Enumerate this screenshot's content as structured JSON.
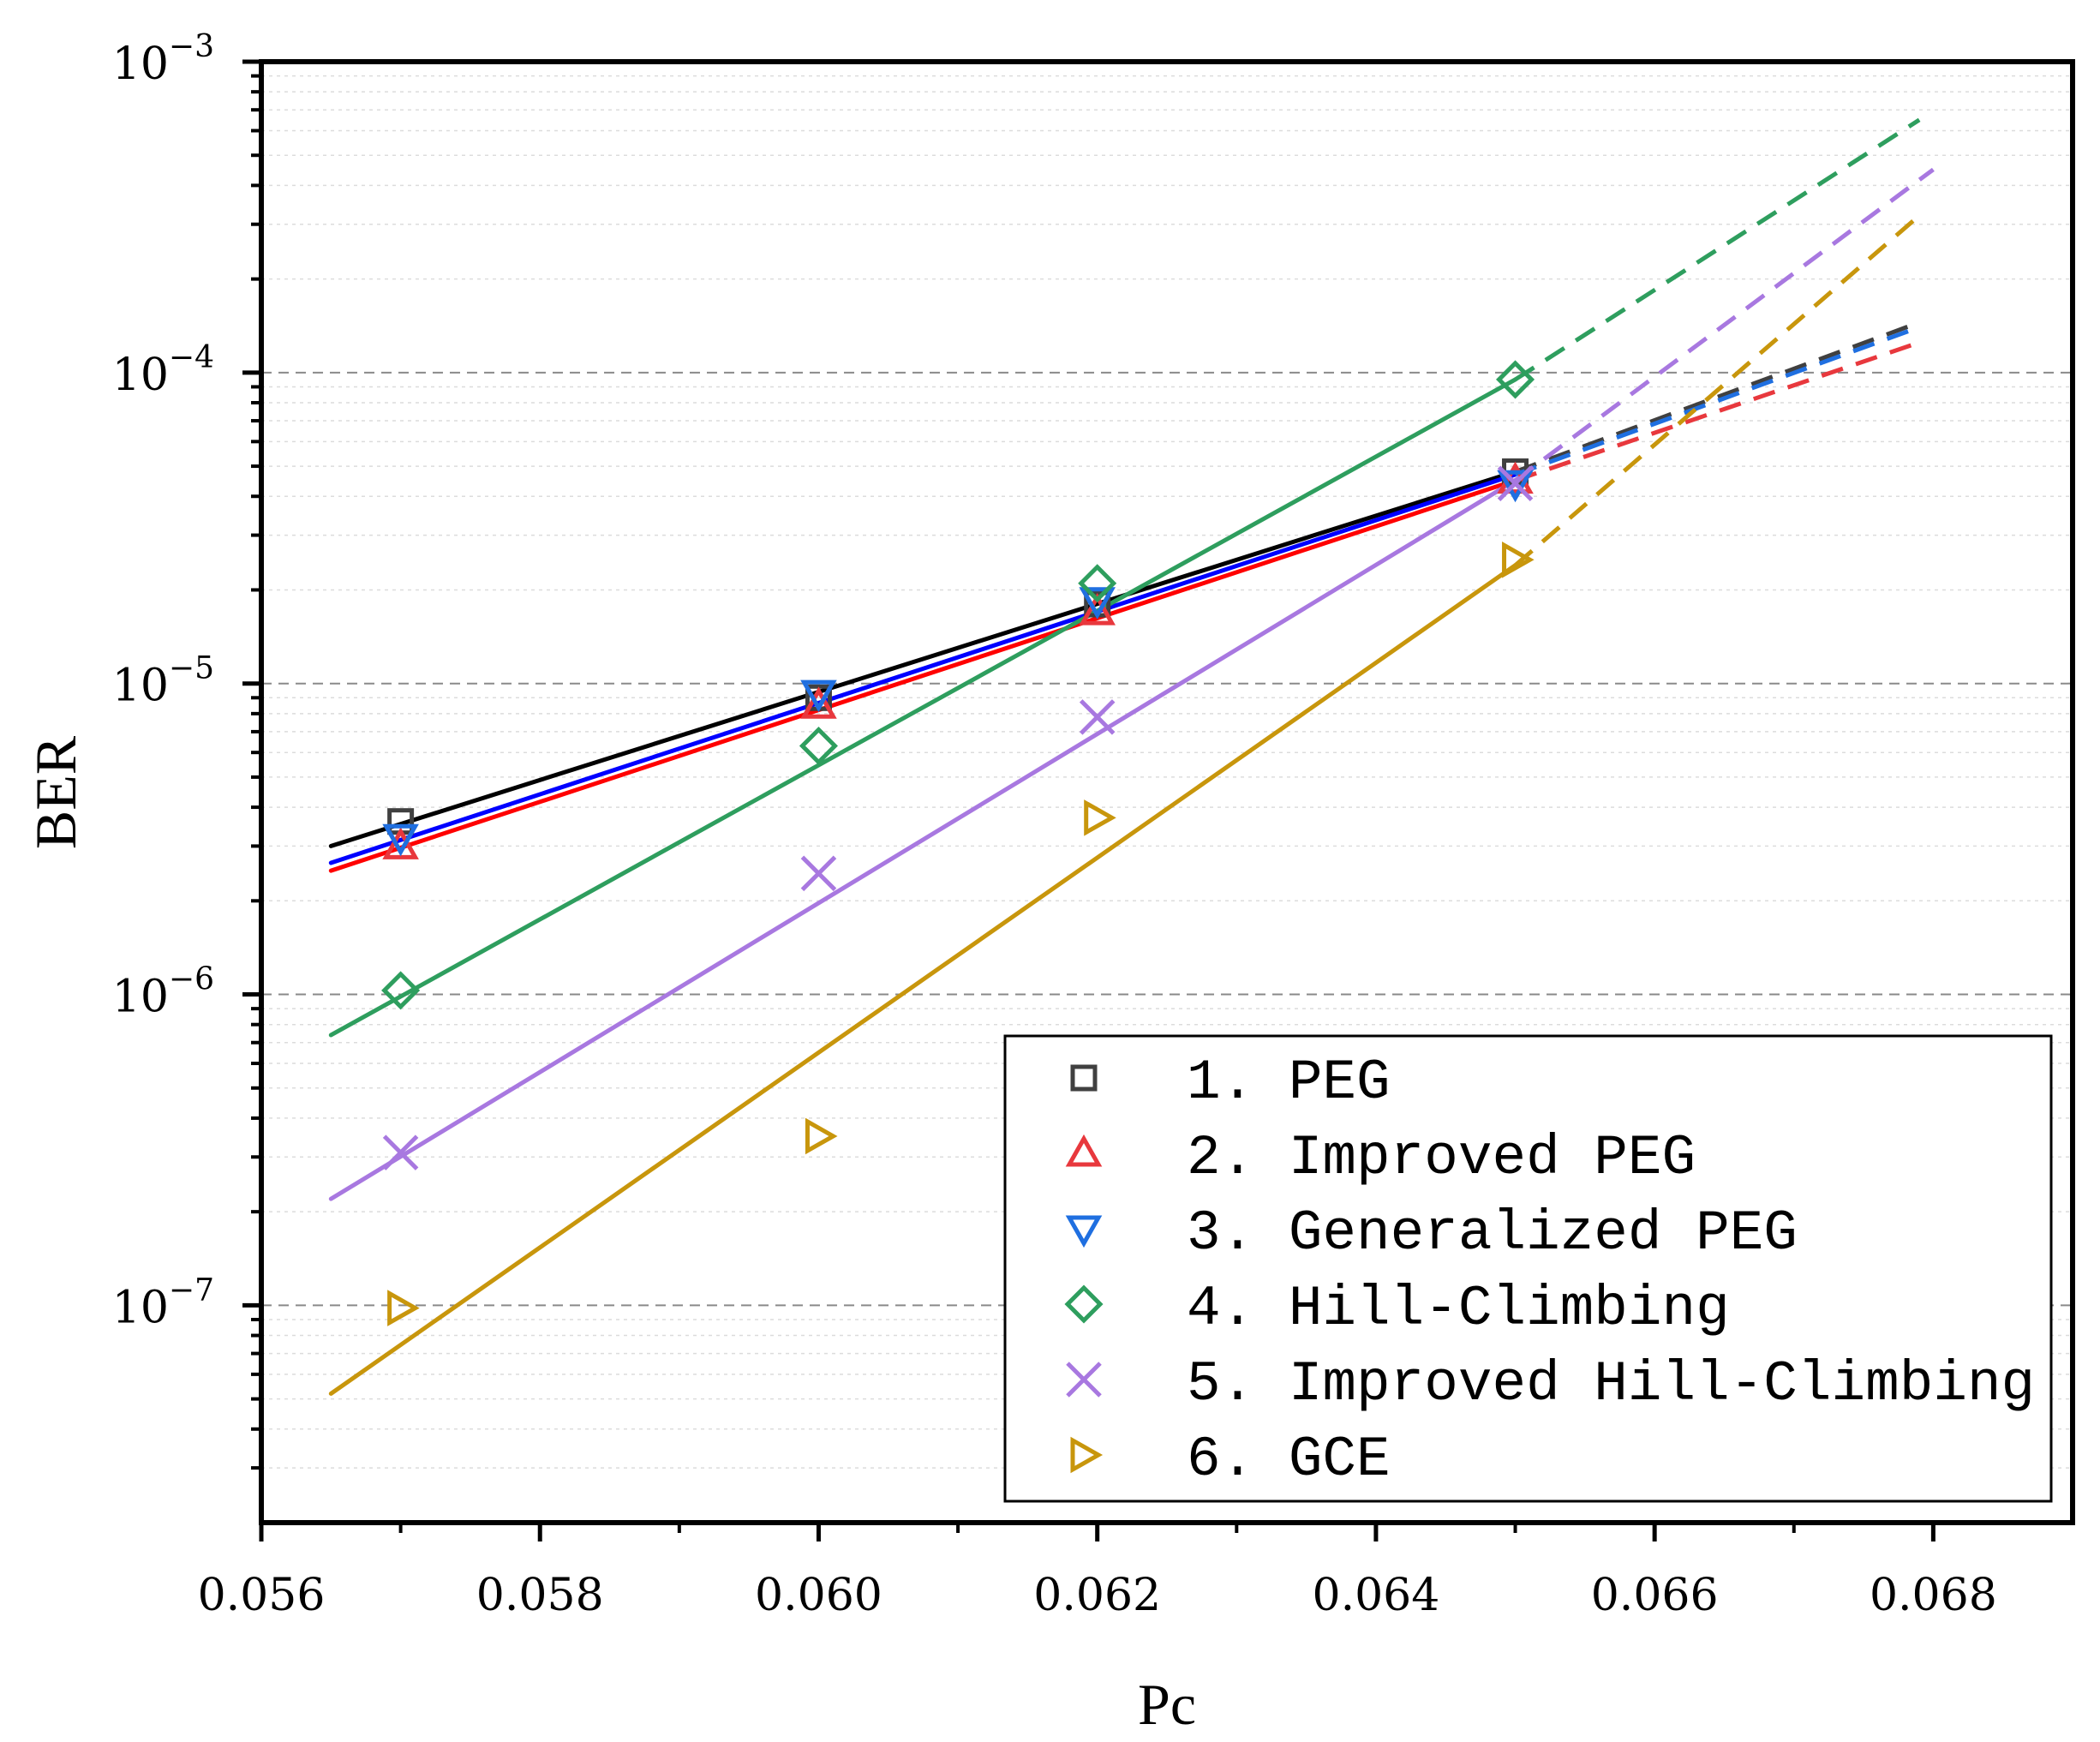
{
  "chart_data": {
    "type": "line",
    "xlabel": "Pc",
    "ylabel": "BER",
    "yscale": "log",
    "xlim": [
      0.056,
      0.069
    ],
    "ylim": [
      2e-08,
      0.001
    ],
    "x_ticks": [
      {
        "value": 0.056,
        "label": "0.056"
      },
      {
        "value": 0.058,
        "label": "0.058"
      },
      {
        "value": 0.06,
        "label": "0.060"
      },
      {
        "value": 0.062,
        "label": "0.062"
      },
      {
        "value": 0.064,
        "label": "0.064"
      },
      {
        "value": 0.066,
        "label": "0.066"
      },
      {
        "value": 0.068,
        "label": "0.068"
      }
    ],
    "y_ticks": [
      {
        "value": 1e-07,
        "base": "10",
        "exp": "−7"
      },
      {
        "value": 1e-06,
        "base": "10",
        "exp": "−6"
      },
      {
        "value": 1e-05,
        "base": "10",
        "exp": "−5"
      },
      {
        "value": 0.0001,
        "base": "10",
        "exp": "−4"
      },
      {
        "value": 0.001,
        "base": "10",
        "exp": "−3"
      }
    ],
    "grid": "horizontal dashed",
    "legend_position": "bottom-right",
    "series": [
      {
        "name": "1.  PEG",
        "marker": "square",
        "color": "#404040",
        "fit_color": "#000000",
        "points": [
          [
            0.057,
            3.6e-06
          ],
          [
            0.06,
            9e-06
          ],
          [
            0.062,
            1.8e-05
          ],
          [
            0.065,
            4.8e-05
          ]
        ],
        "fit": {
          "x": [
            0.0565,
            0.065
          ],
          "y": [
            3e-06,
            4.8e-05
          ]
        },
        "extrap": {
          "x": [
            0.065,
            0.0679
          ],
          "y": [
            4.8e-05,
            0.000145
          ]
        }
      },
      {
        "name": "2.  Improved PEG",
        "marker": "triangle-up",
        "color": "#e8383d",
        "fit_color": "#ff0000",
        "points": [
          [
            0.057,
            3e-06
          ],
          [
            0.06,
            8.5e-06
          ],
          [
            0.062,
            1.7e-05
          ],
          [
            0.065,
            4.5e-05
          ]
        ],
        "fit": {
          "x": [
            0.0565,
            0.065
          ],
          "y": [
            2.5e-06,
            4.5e-05
          ]
        },
        "extrap": {
          "x": [
            0.065,
            0.0679
          ],
          "y": [
            4.5e-05,
            0.000125
          ]
        }
      },
      {
        "name": "3.  Generalized PEG",
        "marker": "triangle-down",
        "color": "#1f6fe0",
        "fit_color": "#0000ff",
        "points": [
          [
            0.057,
            3.2e-06
          ],
          [
            0.06,
            9.3e-06
          ],
          [
            0.062,
            1.85e-05
          ],
          [
            0.065,
            4.4e-05
          ]
        ],
        "fit": {
          "x": [
            0.0565,
            0.065
          ],
          "y": [
            2.65e-06,
            4.7e-05
          ]
        },
        "extrap": {
          "x": [
            0.065,
            0.0679
          ],
          "y": [
            4.7e-05,
            0.00014
          ]
        }
      },
      {
        "name": "4.  Hill-Climbing",
        "marker": "diamond",
        "color": "#2e9e5e",
        "fit_color": "#2e9e5e",
        "points": [
          [
            0.057,
            1.03e-06
          ],
          [
            0.06,
            6.3e-06
          ],
          [
            0.062,
            2.1e-05
          ],
          [
            0.065,
            9.5e-05
          ]
        ],
        "fit": {
          "x": [
            0.0565,
            0.065
          ],
          "y": [
            7.4e-07,
            9.5e-05
          ]
        },
        "extrap": {
          "x": [
            0.065,
            0.0679
          ],
          "y": [
            9.5e-05,
            0.00065
          ]
        }
      },
      {
        "name": "5.  Improved Hill-Climbing",
        "marker": "x",
        "color": "#a878e0",
        "fit_color": "#a878e0",
        "points": [
          [
            0.057,
            3.1e-07
          ],
          [
            0.06,
            2.45e-06
          ],
          [
            0.062,
            7.8e-06
          ],
          [
            0.065,
            4.4e-05
          ]
        ],
        "fit": {
          "x": [
            0.0565,
            0.065
          ],
          "y": [
            2.2e-07,
            4.5e-05
          ]
        },
        "extrap": {
          "x": [
            0.065,
            0.068
          ],
          "y": [
            4.5e-05,
            0.00045
          ]
        }
      },
      {
        "name": "6.  GCE",
        "marker": "triangle-right",
        "color": "#c8960c",
        "fit_color": "#c8960c",
        "points": [
          [
            0.057,
            9.8e-08
          ],
          [
            0.06,
            3.5e-07
          ],
          [
            0.062,
            3.7e-06
          ],
          [
            0.065,
            2.5e-05
          ]
        ],
        "fit": {
          "x": [
            0.0565,
            0.065
          ],
          "y": [
            5.2e-08,
            2.4e-05
          ]
        },
        "extrap": {
          "x": [
            0.065,
            0.0679
          ],
          "y": [
            2.4e-05,
            0.00032
          ]
        }
      }
    ]
  }
}
